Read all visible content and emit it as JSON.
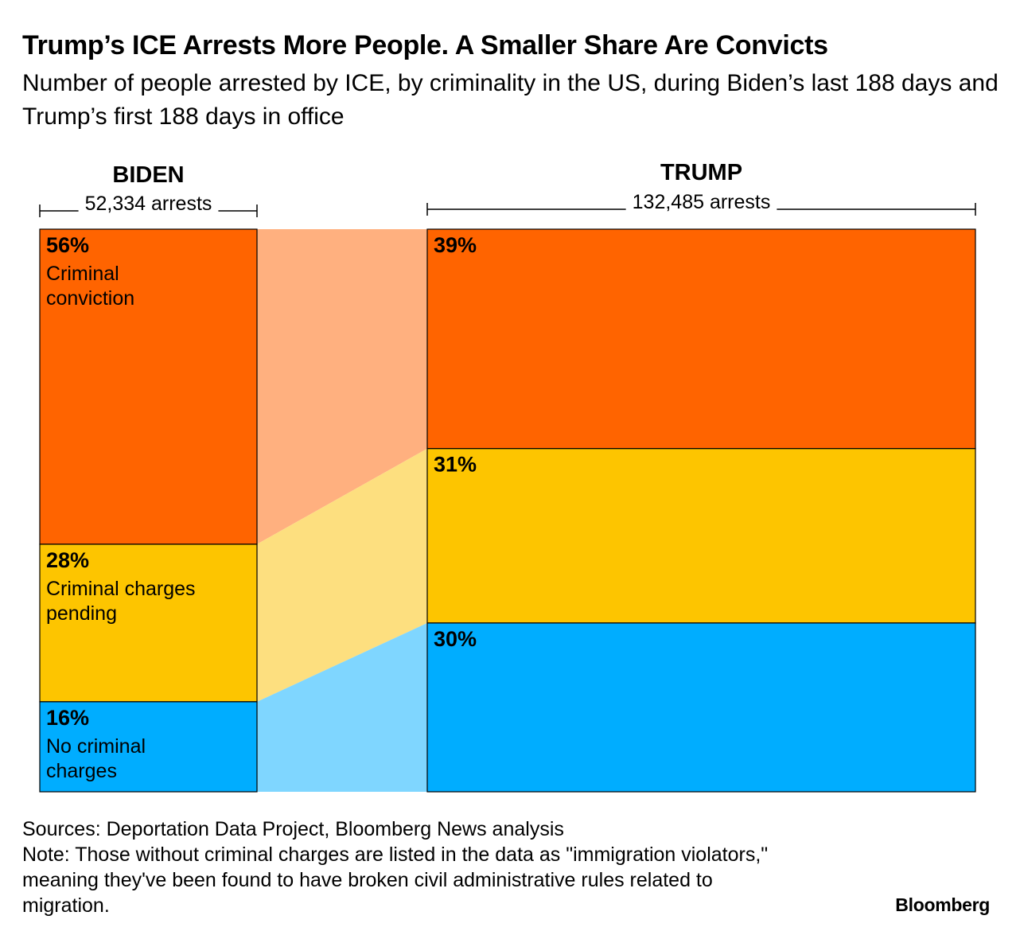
{
  "header": {
    "title": "Trump’s ICE Arrests More People. A Smaller Share Are Convicts",
    "subtitle": "Number of people arrested by ICE, by criminality in the US, during Biden’s last 188 days and Trump’s first 188 days in office"
  },
  "chart_data": {
    "type": "bar",
    "stacked": true,
    "normalized": true,
    "categories": [
      "BIDEN",
      "TRUMP"
    ],
    "totals_labels": [
      "52,334 arrests",
      "132,485 arrests"
    ],
    "totals": [
      52334,
      132485
    ],
    "series": [
      {
        "name": "Criminal conviction",
        "values": [
          56,
          39
        ],
        "labels": [
          "56%",
          "39%"
        ],
        "color": "#ff6400"
      },
      {
        "name": "Criminal charges pending",
        "values": [
          28,
          31
        ],
        "labels": [
          "28%",
          "31%"
        ],
        "color": "#fdc500"
      },
      {
        "name": "No criminal charges",
        "values": [
          16,
          30
        ],
        "labels": [
          "16%",
          "30%"
        ],
        "color": "#00adff"
      }
    ],
    "connector_colors": [
      "#ffb07f",
      "#fddf7f",
      "#7fd6ff"
    ],
    "unit": "%"
  },
  "footer": {
    "sources": "Sources: Deportation Data Project, Bloomberg News analysis",
    "note": "Note: Those without criminal charges are listed in the data as \"immigration violators,\" meaning they've been found to have broken civil administrative rules related to migration.",
    "brand": "Bloomberg"
  }
}
